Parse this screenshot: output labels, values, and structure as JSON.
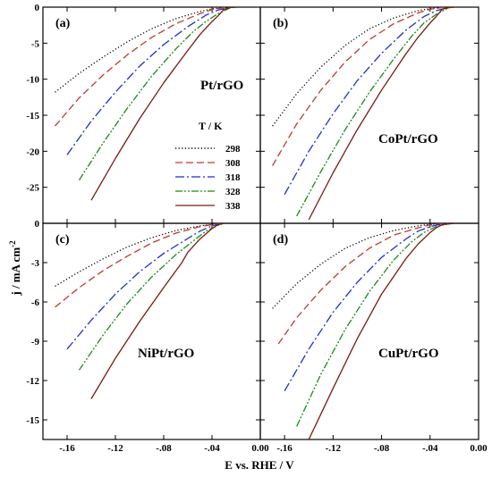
{
  "figure": {
    "xlabel": "E vs. RHE / V",
    "ylabel_main": "j / mA cm",
    "ylabel_sup": "-2"
  },
  "legend": {
    "title": "T / K",
    "entries": [
      "298",
      "308",
      "318",
      "328",
      "338"
    ]
  },
  "series_styles": [
    {
      "name": "298",
      "color": "#000000",
      "dash": "1.2,2.4"
    },
    {
      "name": "308",
      "color": "#c0392b",
      "dash": "8,4"
    },
    {
      "name": "318",
      "color": "#1f2fcf",
      "dash": "10,3,2,3"
    },
    {
      "name": "328",
      "color": "#1a8a1a",
      "dash": "8,2,2,2,2,2"
    },
    {
      "name": "338",
      "color": "#7a1a10",
      "dash": ""
    }
  ],
  "chart_data": [
    {
      "type": "line",
      "panel": "(a)",
      "label": "Pt/rGO",
      "xlim": [
        -0.18,
        0.0
      ],
      "ylim": [
        -30,
        0
      ],
      "xticks": [
        -0.16,
        -0.12,
        -0.08,
        -0.04,
        0.0
      ],
      "yticks": [
        0,
        -5,
        -10,
        -15,
        -20,
        -25
      ],
      "series": [
        {
          "name": "298",
          "x": [
            -0.17,
            -0.15,
            -0.13,
            -0.11,
            -0.09,
            -0.07,
            -0.05,
            -0.04,
            -0.03,
            -0.02
          ],
          "y": [
            -11.8,
            -9.2,
            -6.9,
            -4.8,
            -3.0,
            -1.6,
            -0.6,
            -0.25,
            -0.05,
            0
          ]
        },
        {
          "name": "308",
          "x": [
            -0.17,
            -0.15,
            -0.13,
            -0.11,
            -0.09,
            -0.07,
            -0.05,
            -0.04,
            -0.03,
            -0.02
          ],
          "y": [
            -16.5,
            -12.6,
            -9.4,
            -6.6,
            -4.2,
            -2.3,
            -0.9,
            -0.35,
            -0.05,
            0
          ]
        },
        {
          "name": "318",
          "x": [
            -0.16,
            -0.14,
            -0.12,
            -0.1,
            -0.08,
            -0.06,
            -0.045,
            -0.035,
            -0.025,
            -0.02
          ],
          "y": [
            -20.5,
            -15.8,
            -11.8,
            -8.2,
            -5.2,
            -2.7,
            -1.1,
            -0.4,
            -0.05,
            0
          ]
        },
        {
          "name": "328",
          "x": [
            -0.15,
            -0.13,
            -0.11,
            -0.09,
            -0.07,
            -0.055,
            -0.045,
            -0.035,
            -0.025,
            -0.02
          ],
          "y": [
            -24.0,
            -18.8,
            -14.0,
            -9.6,
            -5.8,
            -3.3,
            -2.0,
            -0.9,
            -0.1,
            0
          ]
        },
        {
          "name": "338",
          "x": [
            -0.14,
            -0.12,
            -0.1,
            -0.08,
            -0.06,
            -0.05,
            -0.04,
            -0.035,
            -0.03,
            -0.025,
            -0.02
          ],
          "y": [
            -26.8,
            -21.0,
            -15.5,
            -10.5,
            -6.0,
            -3.8,
            -2.0,
            -1.2,
            -0.3,
            -0.05,
            0
          ]
        }
      ]
    },
    {
      "type": "line",
      "panel": "(b)",
      "label": "CoPt/rGO",
      "xlim": [
        -0.18,
        0.0
      ],
      "ylim": [
        -30,
        0
      ],
      "xticks": [
        -0.16,
        -0.12,
        -0.08,
        -0.04,
        0.0
      ],
      "yticks": [
        0,
        -5,
        -10,
        -15,
        -20,
        -25
      ],
      "series": [
        {
          "name": "298",
          "x": [
            -0.17,
            -0.15,
            -0.13,
            -0.11,
            -0.09,
            -0.07,
            -0.05,
            -0.04,
            -0.03,
            -0.02
          ],
          "y": [
            -16.5,
            -12.0,
            -8.3,
            -5.3,
            -3.0,
            -1.5,
            -0.5,
            -0.2,
            -0.05,
            0
          ]
        },
        {
          "name": "308",
          "x": [
            -0.17,
            -0.15,
            -0.13,
            -0.11,
            -0.09,
            -0.07,
            -0.05,
            -0.04,
            -0.03,
            -0.02
          ],
          "y": [
            -22.0,
            -16.2,
            -11.5,
            -7.6,
            -4.5,
            -2.3,
            -0.8,
            -0.3,
            -0.05,
            0
          ]
        },
        {
          "name": "318",
          "x": [
            -0.16,
            -0.14,
            -0.12,
            -0.1,
            -0.08,
            -0.06,
            -0.045,
            -0.035,
            -0.025,
            -0.02
          ],
          "y": [
            -26.0,
            -20.0,
            -14.8,
            -10.2,
            -6.4,
            -3.2,
            -1.3,
            -0.5,
            -0.05,
            0
          ]
        },
        {
          "name": "328",
          "x": [
            -0.15,
            -0.13,
            -0.11,
            -0.09,
            -0.07,
            -0.055,
            -0.045,
            -0.035,
            -0.025,
            -0.02
          ],
          "y": [
            -29.0,
            -22.8,
            -17.0,
            -11.8,
            -7.2,
            -4.0,
            -2.2,
            -1.0,
            -0.1,
            0
          ]
        },
        {
          "name": "338",
          "x": [
            -0.14,
            -0.12,
            -0.1,
            -0.08,
            -0.06,
            -0.05,
            -0.04,
            -0.035,
            -0.03,
            -0.025,
            -0.02
          ],
          "y": [
            -29.5,
            -23.0,
            -17.0,
            -11.5,
            -6.5,
            -4.2,
            -2.2,
            -1.3,
            -0.3,
            -0.05,
            0
          ]
        }
      ]
    },
    {
      "type": "line",
      "panel": "(c)",
      "label": "NiPt/rGO",
      "xlim": [
        -0.18,
        0.0
      ],
      "ylim": [
        -16.5,
        0
      ],
      "xticks": [
        -0.16,
        -0.12,
        -0.08,
        -0.04,
        0.0
      ],
      "yticks": [
        0,
        -3,
        -6,
        -9,
        -12,
        -15
      ],
      "series": [
        {
          "name": "298",
          "x": [
            -0.17,
            -0.15,
            -0.13,
            -0.11,
            -0.09,
            -0.07,
            -0.05,
            -0.04,
            -0.03
          ],
          "y": [
            -4.8,
            -3.7,
            -2.7,
            -1.8,
            -1.1,
            -0.55,
            -0.2,
            -0.08,
            0
          ]
        },
        {
          "name": "308",
          "x": [
            -0.17,
            -0.15,
            -0.13,
            -0.11,
            -0.09,
            -0.07,
            -0.05,
            -0.04,
            -0.03
          ],
          "y": [
            -6.4,
            -4.9,
            -3.6,
            -2.5,
            -1.5,
            -0.75,
            -0.25,
            -0.1,
            0
          ]
        },
        {
          "name": "318",
          "x": [
            -0.16,
            -0.14,
            -0.12,
            -0.1,
            -0.08,
            -0.06,
            -0.05,
            -0.04,
            -0.03
          ],
          "y": [
            -9.6,
            -7.4,
            -5.4,
            -3.7,
            -2.3,
            -1.15,
            -0.6,
            -0.2,
            0
          ]
        },
        {
          "name": "328",
          "x": [
            -0.15,
            -0.13,
            -0.11,
            -0.09,
            -0.07,
            -0.055,
            -0.045,
            -0.035,
            -0.03
          ],
          "y": [
            -11.2,
            -8.5,
            -6.1,
            -4.1,
            -2.4,
            -1.3,
            -0.6,
            -0.15,
            0
          ]
        },
        {
          "name": "338",
          "x": [
            -0.14,
            -0.12,
            -0.1,
            -0.08,
            -0.065,
            -0.06,
            -0.05,
            -0.04,
            -0.035,
            -0.03
          ],
          "y": [
            -13.4,
            -10.3,
            -7.5,
            -4.9,
            -3.0,
            -2.2,
            -1.2,
            -0.4,
            -0.1,
            0
          ]
        }
      ]
    },
    {
      "type": "line",
      "panel": "(d)",
      "label": "CuPt/rGO",
      "xlim": [
        -0.18,
        0.0
      ],
      "ylim": [
        -16.5,
        0
      ],
      "xticks": [
        -0.16,
        -0.12,
        -0.08,
        -0.04,
        0.0
      ],
      "yticks": [
        0,
        -3,
        -6,
        -9,
        -12,
        -15
      ],
      "series": [
        {
          "name": "298",
          "x": [
            -0.17,
            -0.15,
            -0.13,
            -0.11,
            -0.09,
            -0.07,
            -0.05,
            -0.04,
            -0.03,
            -0.02
          ],
          "y": [
            -6.5,
            -4.6,
            -3.1,
            -1.9,
            -1.1,
            -0.55,
            -0.2,
            -0.08,
            -0.02,
            0
          ]
        },
        {
          "name": "308",
          "x": [
            -0.165,
            -0.15,
            -0.13,
            -0.11,
            -0.09,
            -0.07,
            -0.05,
            -0.04,
            -0.03,
            -0.02
          ],
          "y": [
            -9.2,
            -7.2,
            -5.1,
            -3.3,
            -1.9,
            -0.9,
            -0.35,
            -0.12,
            -0.02,
            0
          ]
        },
        {
          "name": "318",
          "x": [
            -0.16,
            -0.14,
            -0.12,
            -0.1,
            -0.08,
            -0.06,
            -0.05,
            -0.04,
            -0.03,
            -0.02
          ],
          "y": [
            -12.8,
            -9.6,
            -6.8,
            -4.5,
            -2.6,
            -1.2,
            -0.6,
            -0.25,
            -0.05,
            0
          ]
        },
        {
          "name": "328",
          "x": [
            -0.15,
            -0.13,
            -0.11,
            -0.09,
            -0.07,
            -0.055,
            -0.045,
            -0.035,
            -0.025,
            -0.02
          ],
          "y": [
            -15.5,
            -11.5,
            -8.1,
            -5.2,
            -2.8,
            -1.4,
            -0.7,
            -0.25,
            -0.05,
            0
          ]
        },
        {
          "name": "338",
          "x": [
            -0.14,
            -0.12,
            -0.1,
            -0.08,
            -0.06,
            -0.05,
            -0.04,
            -0.035,
            -0.03,
            -0.02
          ],
          "y": [
            -16.5,
            -12.6,
            -8.8,
            -5.4,
            -2.7,
            -1.6,
            -0.7,
            -0.35,
            -0.1,
            0
          ]
        }
      ]
    }
  ]
}
